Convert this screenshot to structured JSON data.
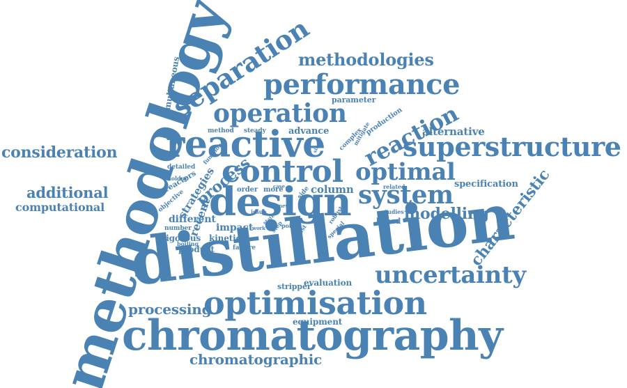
{
  "cloud": {
    "accent_color": "#4a82b4",
    "background_color": "#ffffff",
    "words": [
      "methodology",
      "distillation",
      "chromatography",
      "optimisation",
      "design",
      "reactive",
      "control",
      "superstructure",
      "performance",
      "separation",
      "operation",
      "optimal",
      "system",
      "uncertainty",
      "reaction",
      "methodologies",
      "consideration",
      "additional",
      "computational",
      "characteristic",
      "modelling",
      "chromatographic",
      "processing",
      "column",
      "process",
      "strategies",
      "recent",
      "different",
      "rigorous",
      "product",
      "kinetic",
      "impact",
      "evaluation",
      "equipment",
      "stripper",
      "specification",
      "alternative",
      "advance",
      "simultaneous",
      "parameter",
      "production",
      "method",
      "steady",
      "more",
      "order",
      "detailed",
      "reactors",
      "objective",
      "holdup",
      "function",
      "number",
      "boiling",
      "failure",
      "issue",
      "work",
      "step",
      "point",
      "related",
      "studies",
      "based",
      "side",
      "case",
      "complex",
      "mitigate",
      "single",
      "robust",
      "special",
      "state",
      "cost",
      "new"
    ]
  }
}
